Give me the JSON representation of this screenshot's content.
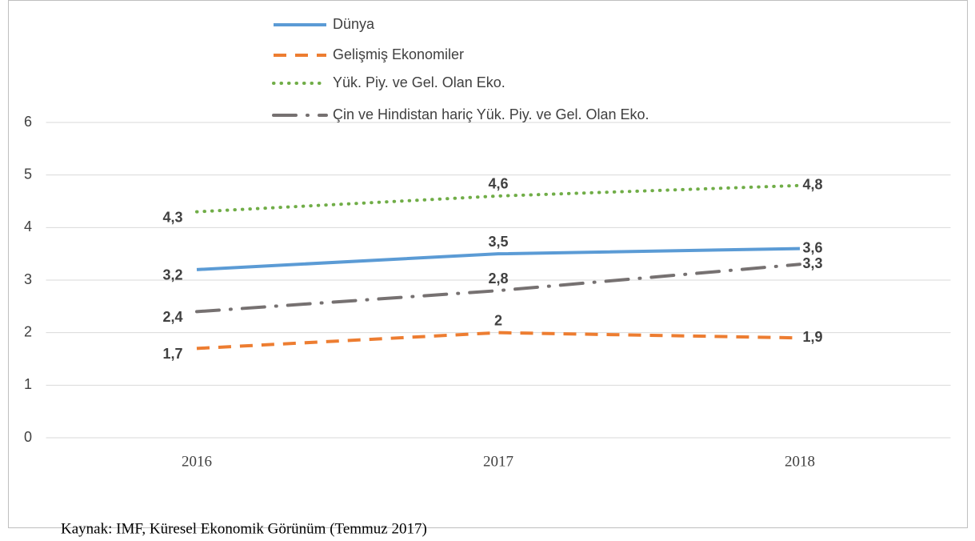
{
  "chart_data": {
    "type": "line",
    "categories": [
      "2016",
      "2017",
      "2018"
    ],
    "series": [
      {
        "name": "Dünya",
        "color": "#5b9bd5",
        "style": "solid",
        "values": [
          3.2,
          3.5,
          3.6
        ],
        "value_labels": [
          "3,2",
          "3,5",
          "3,6"
        ]
      },
      {
        "name": "Gelişmiş Ekonomiler",
        "color": "#ed7d31",
        "style": "dashed",
        "values": [
          1.7,
          2,
          1.9
        ],
        "value_labels": [
          "1,7",
          "2",
          "1,9"
        ]
      },
      {
        "name": "Yük. Piy. ve Gel. Olan Eko.",
        "color": "#70ad47",
        "style": "dotted",
        "values": [
          4.3,
          4.6,
          4.8
        ],
        "value_labels": [
          "4,3",
          "4,6",
          "4,8"
        ]
      },
      {
        "name": "Çin ve Hindistan hariç Yük. Piy. ve Gel. Olan Eko.",
        "color": "#767171",
        "style": "dashdot",
        "values": [
          2.4,
          2.8,
          3.3
        ],
        "value_labels": [
          "2,4",
          "2,8",
          "3,3"
        ]
      }
    ],
    "ylim": [
      0,
      6
    ],
    "yticks": [
      0,
      1,
      2,
      3,
      4,
      5,
      6
    ],
    "grid": true,
    "legend": "top",
    "source": "Kaynak: IMF, Küresel Ekonomik Görünüm (Temmuz 2017)"
  }
}
